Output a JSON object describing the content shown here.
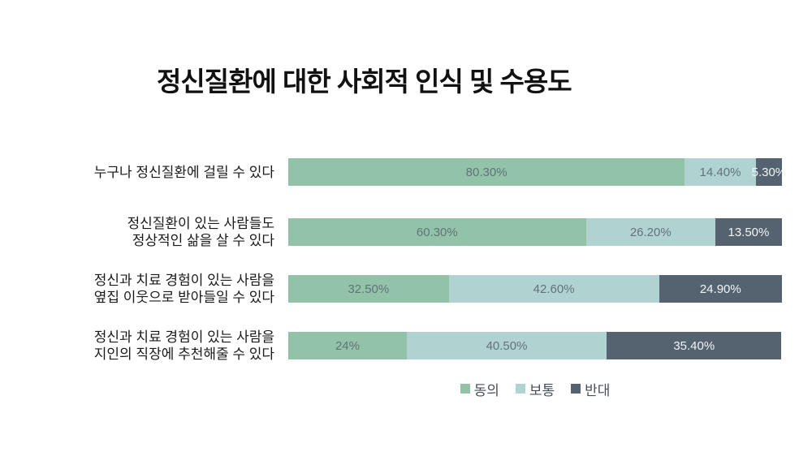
{
  "chart_data": {
    "type": "bar",
    "orientation": "horizontal",
    "stacked": true,
    "title": "정신질환에 대한 사회적 인식 및 수용도",
    "grid": false,
    "xlim": [
      0,
      100
    ],
    "legend_position": "bottom-center",
    "categories": [
      {
        "line1": "누구나 정신질환에 걸릴 수 있다",
        "line2": ""
      },
      {
        "line1": "정신질환이 있는 사람들도",
        "line2": "정상적인 삶을 살 수 있다"
      },
      {
        "line1": "정신과 치료 경험이 있는 사람을",
        "line2": "옆집 이웃으로 받아들일 수 있다"
      },
      {
        "line1": "정신과 치료 경험이 있는 사람을",
        "line2": "지인의 직장에 추천해줄 수 있다"
      }
    ],
    "series": [
      {
        "name": "동의",
        "color": "#92c3a9",
        "values": [
          80.3,
          60.3,
          32.5,
          24
        ],
        "display": [
          "80.30%",
          "60.30%",
          "32.50%",
          "24%"
        ]
      },
      {
        "name": "보통",
        "color": "#b0d3d2",
        "values": [
          14.4,
          26.2,
          42.6,
          40.5
        ],
        "display": [
          "14.40%",
          "26.20%",
          "42.60%",
          "40.50%"
        ]
      },
      {
        "name": "반대",
        "color": "#556270",
        "values": [
          5.3,
          13.5,
          24.9,
          35.4
        ],
        "display": [
          "5.30%",
          "13.50%",
          "24.90%",
          "35.40%"
        ]
      }
    ]
  }
}
